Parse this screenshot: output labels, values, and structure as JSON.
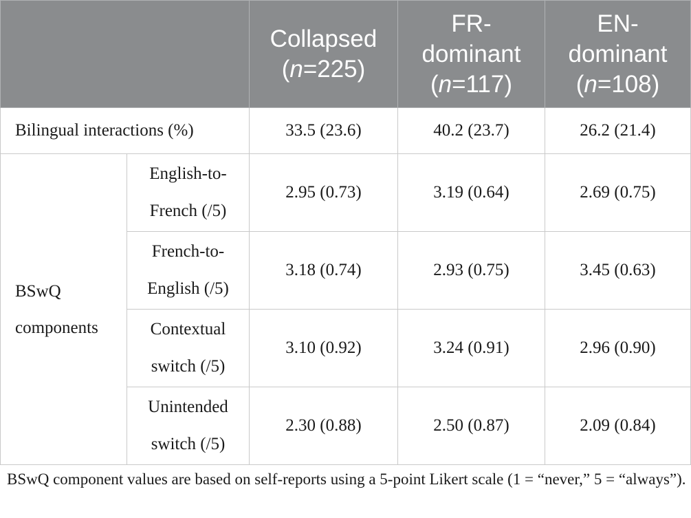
{
  "table": {
    "columns": [
      {
        "name": "Collapsed",
        "n_prefix": "(",
        "n_italic": "n",
        "n_rest": "=225)"
      },
      {
        "name_line1": "FR-",
        "name_line2": "dominant",
        "n_prefix": "(",
        "n_italic": "n",
        "n_rest": "=117)"
      },
      {
        "name_line1": "EN-",
        "name_line2": "dominant",
        "n_prefix": "(",
        "n_italic": "n",
        "n_rest": "=108)"
      }
    ],
    "bilingual": {
      "label": "Bilingual interactions (%)",
      "values": [
        "33.5 (23.6)",
        "40.2 (23.7)",
        "26.2 (21.4)"
      ]
    },
    "bswq": {
      "group_label_line1": "BSwQ",
      "group_label_line2": "components",
      "rows": [
        {
          "line1": "English-to-",
          "line2": "French (/5)",
          "values": [
            "2.95 (0.73)",
            "3.19 (0.64)",
            "2.69 (0.75)"
          ]
        },
        {
          "line1": "French-to-",
          "line2": "English (/5)",
          "values": [
            "3.18 (0.74)",
            "2.93 (0.75)",
            "3.45 (0.63)"
          ]
        },
        {
          "line1": "Contextual",
          "line2": "switch (/5)",
          "values": [
            "3.10 (0.92)",
            "3.24 (0.91)",
            "2.96 (0.90)"
          ]
        },
        {
          "line1": "Unintended",
          "line2": "switch (/5)",
          "values": [
            "2.30 (0.88)",
            "2.50 (0.87)",
            "2.09 (0.84)"
          ]
        }
      ]
    }
  },
  "footnote": "BSwQ component values are based on self-reports using a 5-point Likert scale (1 = “never,” 5 = “always”).",
  "colors": {
    "header_bg": "#8a8c8e",
    "header_text": "#ffffff",
    "grid": "#c9c9c9"
  }
}
